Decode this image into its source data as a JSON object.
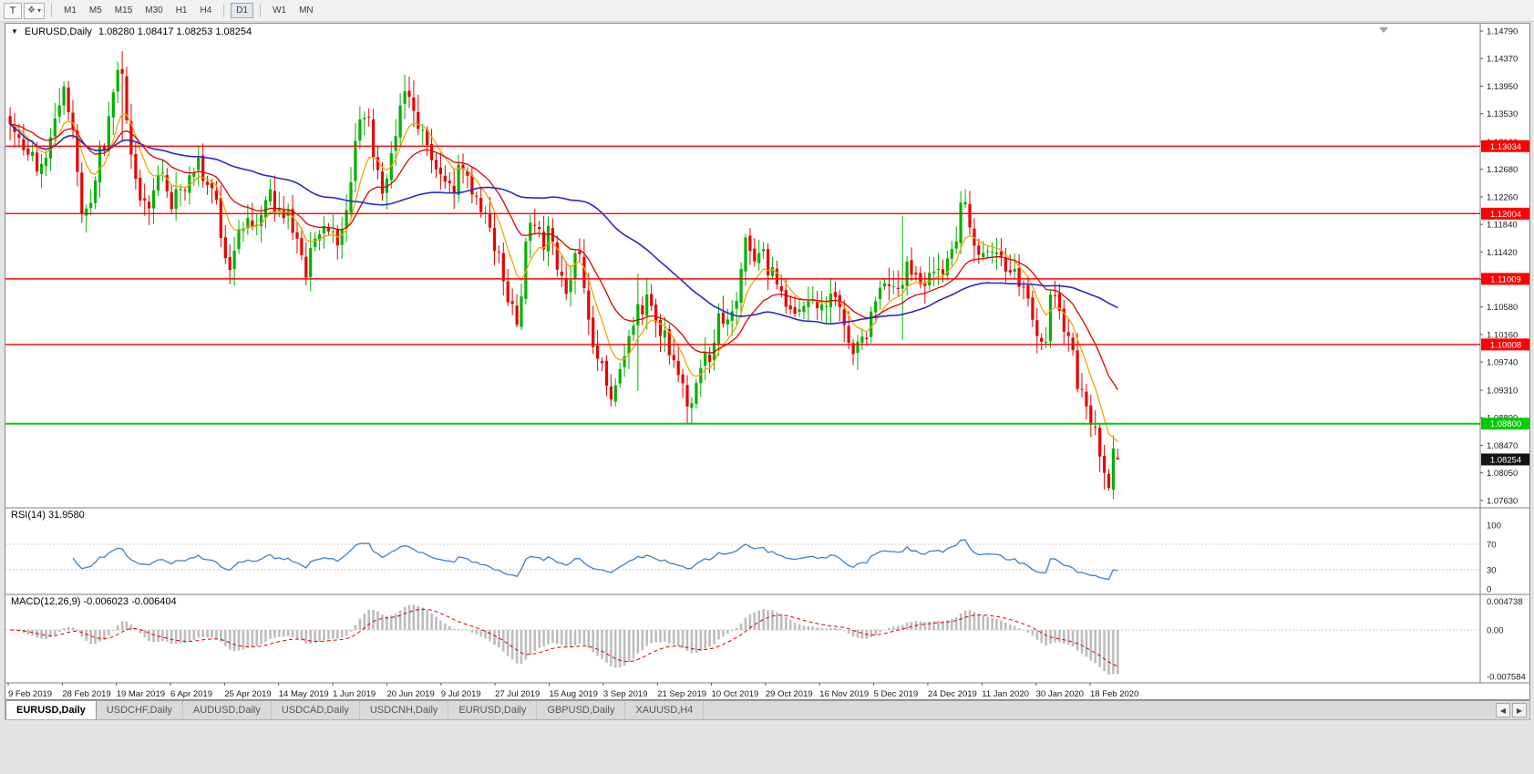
{
  "toolbar": {
    "text_tool": "T",
    "shapes_icon": "❖",
    "caret_icon": "▾",
    "timeframes": [
      "M1",
      "M5",
      "M15",
      "M30",
      "H1",
      "H4",
      "D1",
      "W1",
      "MN"
    ],
    "active_timeframe": "D1"
  },
  "chart": {
    "collapse_icon": "▼",
    "symbol_title": "EURUSD,Daily",
    "quote_ohlc": "1.08280 1.08417 1.08253 1.08254"
  },
  "rsi": {
    "name": "RSI(14)",
    "value": "31.9580"
  },
  "macd": {
    "name": "MACD(12,26,9)",
    "values": "-0.006023 -0.006404"
  },
  "tabs": {
    "items": [
      {
        "label": "EURUSD,Daily",
        "active": true
      },
      {
        "label": "USDCHF,Daily",
        "active": false
      },
      {
        "label": "AUDUSD,Daily",
        "active": false
      },
      {
        "label": "USDCAD,Daily",
        "active": false
      },
      {
        "label": "USDCNH,Daily",
        "active": false
      },
      {
        "label": "EURUSD,Daily",
        "active": false
      },
      {
        "label": "GBPUSD,Daily",
        "active": false
      },
      {
        "label": "XAUUSD,H4",
        "active": false
      }
    ],
    "scroll_left": "◀",
    "scroll_right": "▶"
  },
  "chart_data": {
    "type": "candlestick",
    "symbol": "EURUSD",
    "timeframe": "Daily",
    "current_ohlc": {
      "open": 1.0828,
      "high": 1.08417,
      "low": 1.08253,
      "close": 1.08254
    },
    "price_axis_ticks": [
      "1.14790",
      "1.14370",
      "1.13950",
      "1.13530",
      "1.13100",
      "1.12680",
      "1.12260",
      "1.11840",
      "1.11420",
      "1.11000",
      "1.10580",
      "1.10160",
      "1.09740",
      "1.09310",
      "1.08890",
      "1.08470",
      "1.08050",
      "1.07630"
    ],
    "date_axis_ticks": [
      "9 Feb 2019",
      "28 Feb 2019",
      "19 Mar 2019",
      "6 Apr 2019",
      "25 Apr 2019",
      "14 May 2019",
      "1 Jun 2019",
      "20 Jun 2019",
      "9 Jul 2019",
      "27 Jul 2019",
      "15 Aug 2019",
      "3 Sep 2019",
      "21 Sep 2019",
      "10 Oct 2019",
      "29 Oct 2019",
      "16 Nov 2019",
      "5 Dec 2019",
      "24 Dec 2019",
      "11 Jan 2020",
      "30 Jan 2020",
      "18 Feb 2020"
    ],
    "horizontal_levels": [
      {
        "value": 1.13034,
        "label": "1.13034",
        "color": "#ff0000",
        "width": 1.4
      },
      {
        "value": 1.12004,
        "label": "1.12004",
        "color": "#ff0000",
        "width": 1.4
      },
      {
        "value": 1.11009,
        "label": "1.11009",
        "color": "#ff0000",
        "width": 1.4
      },
      {
        "value": 1.10008,
        "label": "1.10008",
        "color": "#ff0000",
        "width": 1.4
      },
      {
        "value": 1.088,
        "label": "1.08800",
        "color": "#00cc00",
        "width": 2
      }
    ],
    "current_price": {
      "value": 1.08254,
      "label": "1.08254",
      "bg": "#141414"
    },
    "rsi": {
      "period": 14,
      "current": 31.958,
      "axis": [
        [
          "100",
          100
        ],
        [
          "70",
          70
        ],
        [
          "30",
          30
        ],
        [
          "0",
          0
        ]
      ],
      "guides": [
        70,
        30
      ]
    },
    "macd": {
      "fast": 12,
      "slow": 26,
      "signal": 9,
      "current_macd": -0.006023,
      "current_signal": -0.006404,
      "axis": [
        [
          "0.004738",
          0.004738
        ],
        [
          "0.00",
          0
        ],
        [
          "-0.007584",
          -0.007584
        ]
      ]
    },
    "candles": {
      "count": 248,
      "anchors": [
        [
          0,
          1.1325
        ],
        [
          3,
          1.1285
        ],
        [
          6,
          1.1255
        ],
        [
          9,
          1.1305
        ],
        [
          12,
          1.1365
        ],
        [
          14,
          1.133
        ],
        [
          16,
          1.1205
        ],
        [
          19,
          1.1245
        ],
        [
          22,
          1.133
        ],
        [
          24,
          1.1395
        ],
        [
          25,
          1.141
        ],
        [
          27,
          1.13
        ],
        [
          30,
          1.1225
        ],
        [
          33,
          1.124
        ],
        [
          36,
          1.1225
        ],
        [
          39,
          1.126
        ],
        [
          42,
          1.1295
        ],
        [
          45,
          1.123
        ],
        [
          49,
          1.112
        ],
        [
          53,
          1.12
        ],
        [
          57,
          1.122
        ],
        [
          61,
          1.1205
        ],
        [
          64,
          1.116
        ],
        [
          66,
          1.112
        ],
        [
          69,
          1.117
        ],
        [
          73,
          1.117
        ],
        [
          76,
          1.125
        ],
        [
          78,
          1.1335
        ],
        [
          80,
          1.131
        ],
        [
          83,
          1.121
        ],
        [
          86,
          1.131
        ],
        [
          88,
          1.1395
        ],
        [
          90,
          1.137
        ],
        [
          93,
          1.1285
        ],
        [
          95,
          1.128
        ],
        [
          97,
          1.1215
        ],
        [
          100,
          1.126
        ],
        [
          103,
          1.1225
        ],
        [
          106,
          1.118
        ],
        [
          109,
          1.114
        ],
        [
          111,
          1.108
        ],
        [
          113,
          1.1045
        ],
        [
          115,
          1.115
        ],
        [
          116,
          1.12
        ],
        [
          118,
          1.1175
        ],
        [
          121,
          1.114
        ],
        [
          124,
          1.11
        ],
        [
          127,
          1.114
        ],
        [
          129,
          1.106
        ],
        [
          131,
          1.0995
        ],
        [
          134,
          1.094
        ],
        [
          137,
          1.1
        ],
        [
          140,
          1.1065
        ],
        [
          143,
          1.107
        ],
        [
          146,
          1.1015
        ],
        [
          149,
          1.0955
        ],
        [
          152,
          1.09
        ],
        [
          155,
          1.096
        ],
        [
          158,
          1.1005
        ],
        [
          161,
          1.107
        ],
        [
          164,
          1.115
        ],
        [
          167,
          1.113
        ],
        [
          170,
          1.111
        ],
        [
          173,
          1.1075
        ],
        [
          176,
          1.105
        ],
        [
          179,
          1.107
        ],
        [
          182,
          1.105
        ],
        [
          185,
          1.1075
        ],
        [
          188,
          1.1015
        ],
        [
          191,
          1.106
        ],
        [
          194,
          1.1105
        ],
        [
          197,
          1.108
        ],
        [
          200,
          1.112
        ],
        [
          203,
          1.1115
        ],
        [
          207,
          1.109
        ],
        [
          209,
          1.112
        ],
        [
          212,
          1.121
        ],
        [
          215,
          1.117
        ],
        [
          219,
          1.112
        ],
        [
          222,
          1.1105
        ],
        [
          225,
          1.109
        ],
        [
          228,
          1.1035
        ],
        [
          231,
          1.1025
        ],
        [
          232,
          1.109
        ],
        [
          234,
          1.105
        ],
        [
          236,
          1.1
        ],
        [
          238,
          1.0945
        ],
        [
          240,
          1.0905
        ],
        [
          242,
          1.0855
        ],
        [
          244,
          1.0805
        ],
        [
          245,
          1.0782
        ],
        [
          246,
          1.0842
        ],
        [
          247,
          1.08254
        ]
      ],
      "overrides": {
        "25": {
          "h": 1.1448,
          "l": 1.131
        },
        "113": {
          "l": 1.1027
        },
        "140": {
          "h": 1.1109,
          "l": 1.093
        },
        "152": {
          "l": 1.0879
        },
        "199": {
          "h": 1.1197,
          "l": 1.1008
        },
        "245": {
          "l": 1.0778
        },
        "246": {
          "h": 1.0862
        },
        "247": {
          "o": 1.0828,
          "h": 1.08417,
          "l": 1.08253
        }
      }
    },
    "colors": {
      "up": "#00b200",
      "down": "#e80000",
      "ma_fast": "#f2a500",
      "ma_mid": "#e00000",
      "ma_slow": "#2929c8",
      "rsi": "#4080c0",
      "macd_hist": "#bdbdbd",
      "macd_signal": "#dd0000",
      "grid_guide": "#c9c9c9",
      "separator": "#7d7d7d"
    }
  }
}
